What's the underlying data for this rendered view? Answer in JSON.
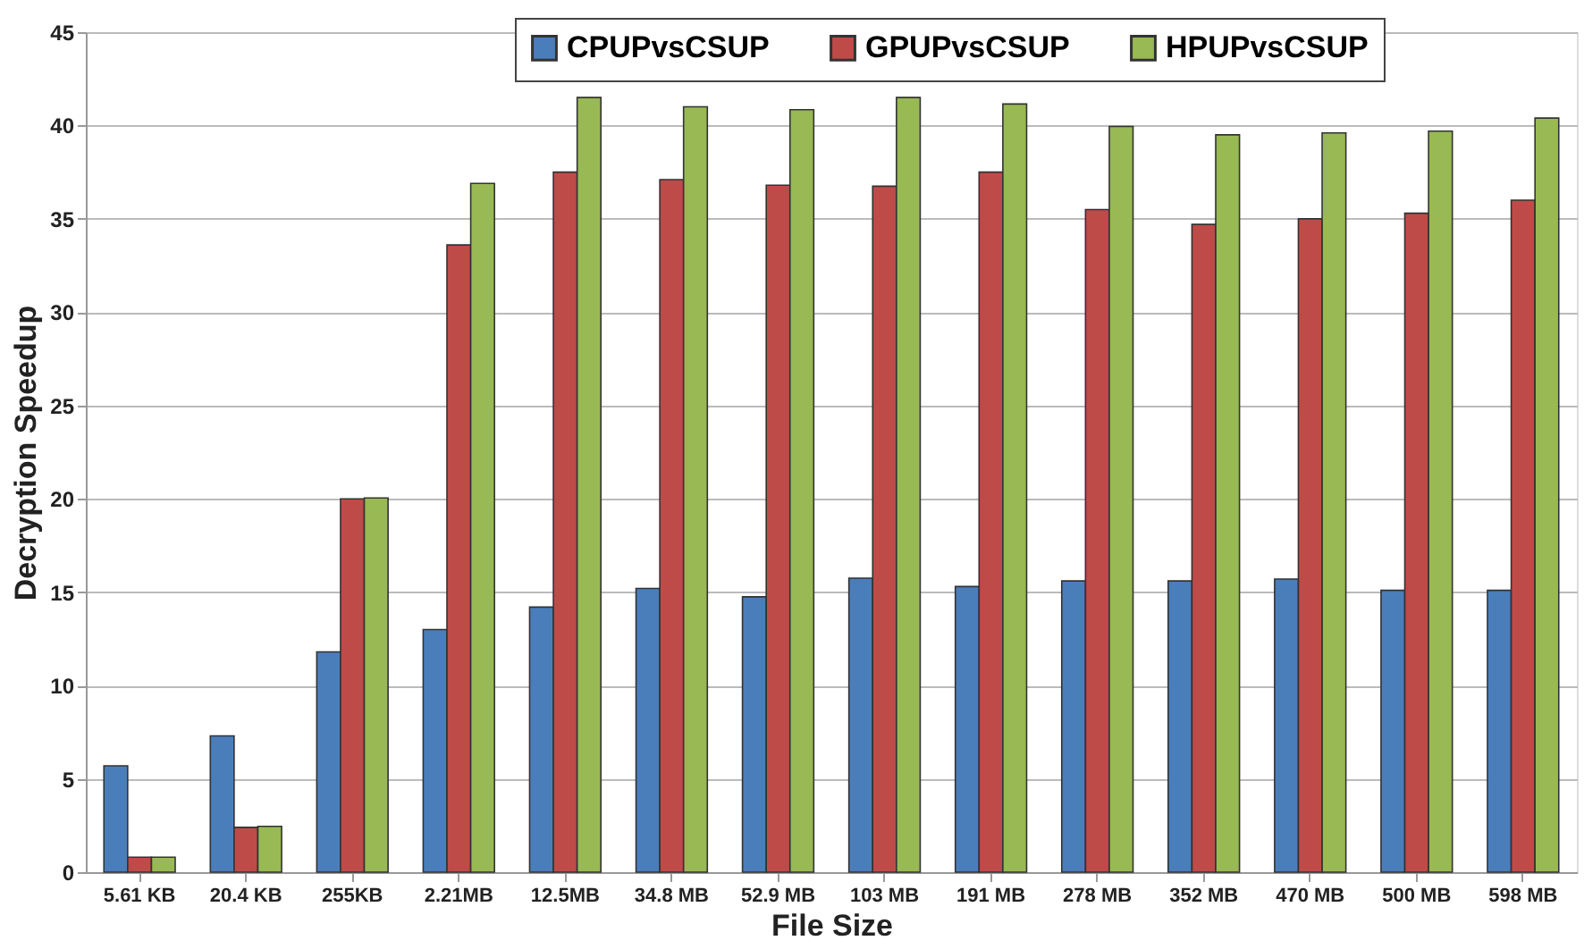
{
  "chart_data": {
    "type": "bar",
    "xlabel": "File Size",
    "ylabel": "Decryption Speedup",
    "categories": [
      "5.61 KB",
      "20.4 KB",
      "255KB",
      "2.21MB",
      "12.5MB",
      "34.8 MB",
      "52.9 MB",
      "103 MB",
      "191 MB",
      "278 MB",
      "352 MB",
      "470 MB",
      "500 MB",
      "598 MB"
    ],
    "series": [
      {
        "name": "CPUPvsCSUP",
        "color": "#4a7ebb",
        "values": [
          5.7,
          7.3,
          11.8,
          13.0,
          14.2,
          15.2,
          14.75,
          15.75,
          15.3,
          15.6,
          15.6,
          15.7,
          15.1,
          15.1
        ]
      },
      {
        "name": "GPUPvsCSUP",
        "color": "#be4b48",
        "values": [
          0.8,
          2.4,
          20.0,
          33.6,
          37.5,
          37.1,
          36.8,
          36.75,
          37.5,
          35.5,
          34.7,
          35.0,
          35.3,
          36.0
        ]
      },
      {
        "name": "HPUPvsCSUP",
        "color": "#98b954",
        "values": [
          0.8,
          2.45,
          20.05,
          36.9,
          41.5,
          41.0,
          40.85,
          41.5,
          41.15,
          39.95,
          39.5,
          39.6,
          39.7,
          40.4
        ]
      }
    ],
    "ylim": [
      0,
      45
    ],
    "yticks": [
      0,
      5,
      10,
      15,
      20,
      25,
      30,
      35,
      40,
      45
    ],
    "grid": "y",
    "legend": "top"
  }
}
